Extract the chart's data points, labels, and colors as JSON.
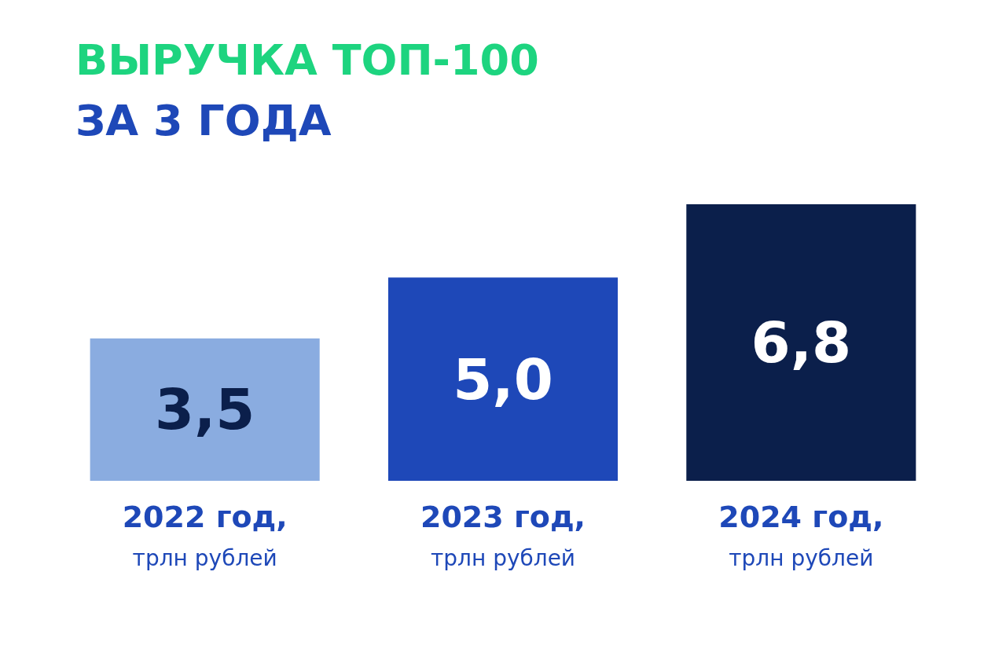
{
  "chart_data": {
    "type": "bar",
    "title": "ВЫРУЧКА ТОП-100",
    "subtitle": "ЗА 3 ГОДА",
    "categories": [
      "2022 год,\nтрлн рублей",
      "2023 год,\nтрлн рублей",
      "2024 год,\nтрлн рублей"
    ],
    "values": [
      3.5,
      5.0,
      6.8
    ],
    "colors": [
      "#8aace0",
      "#1e48b8",
      "#0b1f4b"
    ],
    "value_labels": [
      "3,5",
      "5,0",
      "6,8"
    ]
  }
}
